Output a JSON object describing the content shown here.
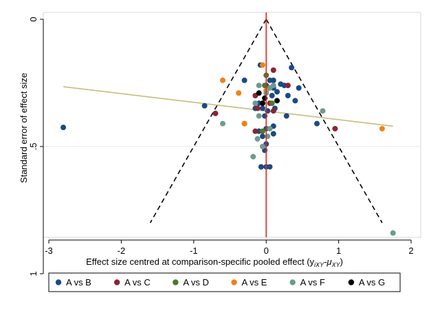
{
  "chart_data": {
    "type": "scatter",
    "title": "",
    "xlabel": "Effect size centred at comparison-specific pooled effect (y",
    "xlabel_sub1": "iXY",
    "xlabel_mid": "-μ",
    "xlabel_sub2": "XY",
    "xlabel_end": ")",
    "ylabel": "Standard error of effect size",
    "xlim": [
      -3.15,
      2.05
    ],
    "ylim": [
      0,
      1
    ],
    "y_reversed": true,
    "xticks": [
      {
        "value": -3,
        "label": "-3"
      },
      {
        "value": -2,
        "label": "-2"
      },
      {
        "value": -1,
        "label": "-1"
      },
      {
        "value": 0,
        "label": "0"
      },
      {
        "value": 1,
        "label": "1"
      },
      {
        "value": 2,
        "label": "2"
      }
    ],
    "yticks": [
      {
        "value": 0,
        "label": "0"
      },
      {
        "value": 0.5,
        "label": ".5"
      },
      {
        "value": 1,
        "label": "1"
      }
    ],
    "grid_lines_y": [
      0.5
    ],
    "null_line": {
      "x": 0,
      "color": "#e8261d"
    },
    "funnel": {
      "apex": [
        0,
        0
      ],
      "left_bottom": [
        -1.6,
        0.8
      ],
      "right_bottom": [
        1.6,
        0.8
      ],
      "color": "#000000"
    },
    "regression_line": {
      "x": [
        -2.8,
        1.75
      ],
      "y": [
        0.265,
        0.42
      ],
      "color": "#c8bc7a"
    },
    "legend": {
      "position": "bottom"
    },
    "series": [
      {
        "name": "A vs B",
        "color": "#1a4a82",
        "points": [
          {
            "x": -2.8,
            "y": 0.425
          },
          {
            "x": -0.85,
            "y": 0.34
          },
          {
            "x": -0.3,
            "y": 0.24
          },
          {
            "x": -0.08,
            "y": 0.18
          },
          {
            "x": 0.0,
            "y": 0.26
          },
          {
            "x": 0.05,
            "y": 0.24
          },
          {
            "x": 0.1,
            "y": 0.27
          },
          {
            "x": 0.15,
            "y": 0.285
          },
          {
            "x": 0.2,
            "y": 0.255
          },
          {
            "x": 0.25,
            "y": 0.26
          },
          {
            "x": 0.3,
            "y": 0.3
          },
          {
            "x": 0.35,
            "y": 0.19
          },
          {
            "x": 0.4,
            "y": 0.32
          },
          {
            "x": 0.45,
            "y": 0.27
          },
          {
            "x": 0.08,
            "y": 0.3
          },
          {
            "x": -0.1,
            "y": 0.33
          },
          {
            "x": -0.05,
            "y": 0.35
          },
          {
            "x": 0.02,
            "y": 0.36
          },
          {
            "x": 0.12,
            "y": 0.35
          },
          {
            "x": -0.15,
            "y": 0.35
          },
          {
            "x": -0.02,
            "y": 0.38
          },
          {
            "x": 0.1,
            "y": 0.42
          },
          {
            "x": 0.1,
            "y": 0.45
          },
          {
            "x": -0.1,
            "y": 0.44
          },
          {
            "x": 0.0,
            "y": 0.43
          },
          {
            "x": -0.05,
            "y": 0.46
          },
          {
            "x": 0.0,
            "y": 0.49
          },
          {
            "x": -0.02,
            "y": 0.515
          },
          {
            "x": 0.7,
            "y": 0.41
          },
          {
            "x": 0.28,
            "y": 0.38
          },
          {
            "x": -0.07,
            "y": 0.58
          },
          {
            "x": 0.0,
            "y": 0.58
          },
          {
            "x": 0.05,
            "y": 0.58
          },
          {
            "x": 0.1,
            "y": 0.24
          }
        ]
      },
      {
        "name": "A vs C",
        "color": "#8a2337",
        "points": [
          {
            "x": -0.7,
            "y": 0.37
          },
          {
            "x": -0.3,
            "y": 0.41
          },
          {
            "x": -0.15,
            "y": 0.3
          },
          {
            "x": -0.15,
            "y": 0.44
          },
          {
            "x": 0.1,
            "y": 0.2
          },
          {
            "x": 0.3,
            "y": 0.26
          },
          {
            "x": 0.95,
            "y": 0.43
          },
          {
            "x": 0.1,
            "y": 0.36
          },
          {
            "x": -0.12,
            "y": 0.35
          },
          {
            "x": 0.05,
            "y": 0.33
          }
        ]
      },
      {
        "name": "A vs D",
        "color": "#4a7a2c",
        "points": [
          {
            "x": 0.0,
            "y": 0.22
          },
          {
            "x": -0.02,
            "y": 0.26
          },
          {
            "x": -0.05,
            "y": 0.44
          },
          {
            "x": 0.08,
            "y": 0.33
          }
        ]
      },
      {
        "name": "A vs E",
        "color": "#f08213",
        "points": [
          {
            "x": -0.6,
            "y": 0.24
          },
          {
            "x": -0.38,
            "y": 0.29
          },
          {
            "x": -0.05,
            "y": 0.18
          },
          {
            "x": -0.3,
            "y": 0.41
          },
          {
            "x": 1.6,
            "y": 0.43
          },
          {
            "x": 0.0,
            "y": 0.28
          }
        ]
      },
      {
        "name": "A vs F",
        "color": "#6f9a8f",
        "points": [
          {
            "x": 1.75,
            "y": 0.84
          },
          {
            "x": 0.78,
            "y": 0.36
          },
          {
            "x": -0.6,
            "y": 0.41
          },
          {
            "x": -0.1,
            "y": 0.26
          },
          {
            "x": -0.05,
            "y": 0.33
          },
          {
            "x": 0.05,
            "y": 0.27
          },
          {
            "x": -0.12,
            "y": 0.47
          },
          {
            "x": -0.05,
            "y": 0.5
          },
          {
            "x": 0.02,
            "y": 0.46
          },
          {
            "x": -0.18,
            "y": 0.54
          },
          {
            "x": 0.05,
            "y": 0.43
          },
          {
            "x": -0.1,
            "y": 0.38
          },
          {
            "x": 0.0,
            "y": 0.29
          },
          {
            "x": 0.1,
            "y": 0.26
          },
          {
            "x": -0.15,
            "y": 0.33
          }
        ]
      },
      {
        "name": "A vs G",
        "color": "#000000",
        "points": [
          {
            "x": -0.1,
            "y": 0.29
          },
          {
            "x": -0.02,
            "y": 0.31
          },
          {
            "x": 0.15,
            "y": 0.32
          },
          {
            "x": -0.05,
            "y": 0.33
          }
        ]
      }
    ]
  }
}
